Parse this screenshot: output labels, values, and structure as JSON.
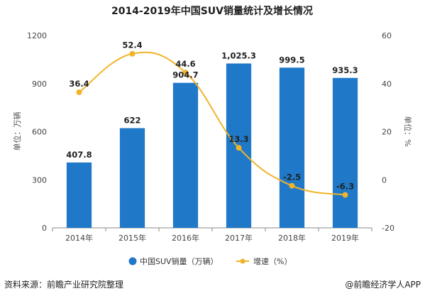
{
  "title": "2014-2019年中国SUV销量统计及增长情况",
  "chart_data": {
    "type": "bar",
    "title": "2014-2019年中国SUV销量统计及增长情况",
    "categories": [
      "2014年",
      "2015年",
      "2016年",
      "2017年",
      "2018年",
      "2019年"
    ],
    "series": [
      {
        "name": "中国SUV销量（万辆）",
        "type": "bar",
        "axis": "left",
        "color": "#1f78c8",
        "values": [
          407.8,
          622,
          904.7,
          1025.3,
          999.5,
          935.3
        ],
        "labels": [
          "407.8",
          "622",
          "904.7",
          "1,025.3",
          "999.5",
          "935.3"
        ]
      },
      {
        "name": "增速（%）",
        "type": "line",
        "axis": "right",
        "color": "#f0b429",
        "values": [
          36.4,
          52.4,
          44.6,
          13.3,
          -2.5,
          -6.3
        ],
        "labels": [
          "36.4",
          "52.4",
          "44.6",
          "13.3",
          "-2.5",
          "-6.3"
        ]
      }
    ],
    "ylabel": "单位：万辆",
    "ylabel_right": "单位：%",
    "ylim": [
      0,
      1200
    ],
    "yticks": [
      0,
      300,
      600,
      900,
      1200
    ],
    "ylim_right": [
      -20,
      60
    ],
    "yticks_right": [
      -20,
      0,
      20,
      40,
      60
    ],
    "grid": false,
    "legend_position": "bottom"
  },
  "legend": {
    "bar_label": "中国SUV销量（万辆）",
    "line_label": "增速（%）"
  },
  "footer": {
    "source": "资料来源：前瞻产业研究院整理",
    "brand": "@前瞻经济学人APP"
  }
}
